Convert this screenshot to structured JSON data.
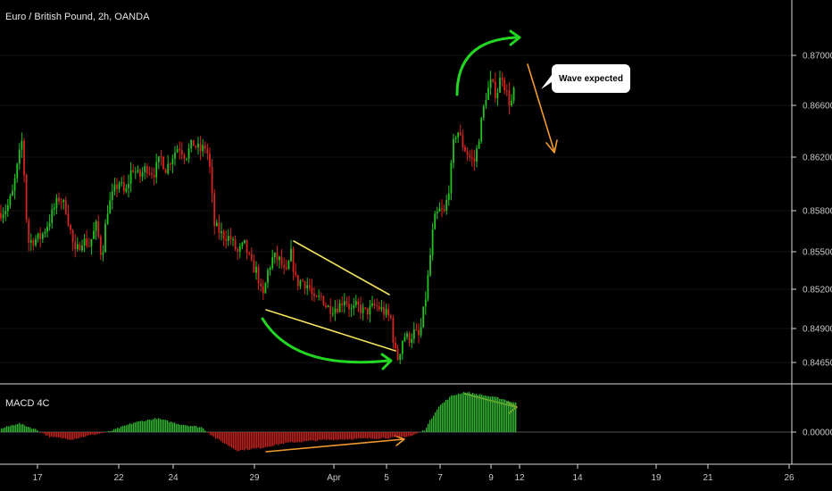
{
  "title": "Euro / British Pound, 2h, OANDA",
  "annotation": "Wave expected",
  "colors": {
    "up": "#22c322",
    "down": "#d8241e",
    "macd_up": "#2fb52f",
    "macd_down": "#c4201c",
    "trendline": "#f2e15a",
    "curve": "#22d622",
    "arrow": "#f29a2e",
    "axis": "#d9d9d9",
    "grid": "#151515"
  },
  "chart_data": [
    {
      "type": "candlestick",
      "name": "EUR/GBP",
      "y_ticks": [
        "0.87000",
        "0.86600",
        "0.86200",
        "0.85800",
        "0.85500",
        "0.85200",
        "0.84900",
        "0.84650"
      ],
      "ylim": [
        0.8455,
        0.8745
      ],
      "price_path": [
        [
          0,
          0.8584
        ],
        [
          8,
          0.8588
        ],
        [
          14,
          0.8599
        ],
        [
          22,
          0.8629
        ],
        [
          25,
          0.864
        ],
        [
          31,
          0.8562
        ],
        [
          46,
          0.8566
        ],
        [
          55,
          0.8578
        ],
        [
          62,
          0.859
        ],
        [
          67,
          0.8596
        ],
        [
          74,
          0.8587
        ],
        [
          84,
          0.8553
        ],
        [
          92,
          0.8564
        ],
        [
          100,
          0.856
        ],
        [
          108,
          0.8575
        ],
        [
          114,
          0.855
        ],
        [
          120,
          0.8586
        ],
        [
          128,
          0.8601
        ],
        [
          134,
          0.8608
        ],
        [
          140,
          0.8597
        ],
        [
          148,
          0.8619
        ],
        [
          156,
          0.8611
        ],
        [
          164,
          0.8619
        ],
        [
          172,
          0.8614
        ],
        [
          180,
          0.8626
        ],
        [
          186,
          0.8617
        ],
        [
          192,
          0.8626
        ],
        [
          200,
          0.8635
        ],
        [
          208,
          0.8627
        ],
        [
          216,
          0.8637
        ],
        [
          224,
          0.8631
        ],
        [
          230,
          0.8634
        ],
        [
          234,
          0.8626
        ],
        [
          240,
          0.8575
        ],
        [
          248,
          0.8568
        ],
        [
          258,
          0.8565
        ],
        [
          266,
          0.8554
        ],
        [
          274,
          0.856
        ],
        [
          282,
          0.8544
        ],
        [
          288,
          0.854
        ],
        [
          294,
          0.8518
        ],
        [
          300,
          0.854
        ],
        [
          306,
          0.8551
        ],
        [
          314,
          0.8548
        ],
        [
          320,
          0.8536
        ],
        [
          326,
          0.8553
        ],
        [
          332,
          0.8531
        ],
        [
          338,
          0.8533
        ],
        [
          346,
          0.8529
        ],
        [
          352,
          0.8517
        ],
        [
          360,
          0.8521
        ],
        [
          366,
          0.8513
        ],
        [
          372,
          0.8512
        ],
        [
          380,
          0.8514
        ],
        [
          386,
          0.852
        ],
        [
          394,
          0.851
        ],
        [
          400,
          0.8514
        ],
        [
          408,
          0.8509
        ],
        [
          414,
          0.8511
        ],
        [
          420,
          0.8514
        ],
        [
          426,
          0.8512
        ],
        [
          432,
          0.8508
        ],
        [
          438,
          0.8504
        ],
        [
          442,
          0.848
        ],
        [
          446,
          0.8474
        ],
        [
          452,
          0.8492
        ],
        [
          458,
          0.8489
        ],
        [
          464,
          0.8494
        ],
        [
          470,
          0.849
        ],
        [
          474,
          0.8508
        ],
        [
          478,
          0.8526
        ],
        [
          482,
          0.8552
        ],
        [
          486,
          0.8578
        ],
        [
          492,
          0.8586
        ],
        [
          498,
          0.8584
        ],
        [
          504,
          0.8608
        ],
        [
          508,
          0.8636
        ],
        [
          512,
          0.8648
        ],
        [
          518,
          0.8636
        ],
        [
          526,
          0.8626
        ],
        [
          532,
          0.8623
        ],
        [
          538,
          0.8648
        ],
        [
          544,
          0.8672
        ],
        [
          550,
          0.8683
        ],
        [
          556,
          0.8673
        ],
        [
          562,
          0.869
        ],
        [
          566,
          0.8678
        ],
        [
          572,
          0.8665
        ],
        [
          578,
          0.8682
        ]
      ],
      "x_ticks": [
        "17",
        "22",
        "24",
        "29",
        "Apr",
        "5",
        "7",
        "9",
        "12",
        "14",
        "19",
        "21",
        "26"
      ]
    },
    {
      "type": "histogram",
      "name": "MACD 4C",
      "y_ticks": [
        "0.00000"
      ],
      "profile": [
        [
          0,
          0.08
        ],
        [
          20,
          0.22
        ],
        [
          40,
          0.06
        ],
        [
          55,
          -0.12
        ],
        [
          80,
          -0.18
        ],
        [
          100,
          -0.08
        ],
        [
          120,
          0.0
        ],
        [
          150,
          0.24
        ],
        [
          175,
          0.34
        ],
        [
          200,
          0.2
        ],
        [
          225,
          0.12
        ],
        [
          240,
          -0.14
        ],
        [
          265,
          -0.46
        ],
        [
          290,
          -0.4
        ],
        [
          320,
          -0.27
        ],
        [
          360,
          -0.2
        ],
        [
          400,
          -0.17
        ],
        [
          440,
          -0.14
        ],
        [
          460,
          -0.1
        ],
        [
          475,
          0.05
        ],
        [
          490,
          0.62
        ],
        [
          505,
          0.9
        ],
        [
          520,
          1.0
        ],
        [
          540,
          0.92
        ],
        [
          560,
          0.84
        ],
        [
          580,
          0.7
        ]
      ]
    }
  ]
}
